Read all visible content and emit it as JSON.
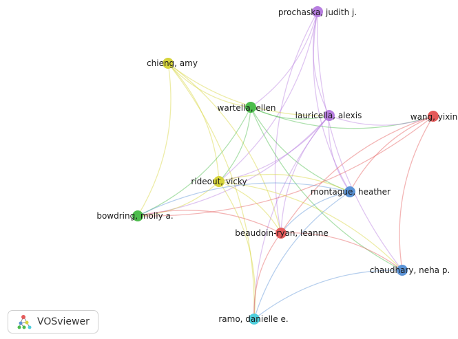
{
  "network": {
    "nodes": [
      {
        "id": "prochaska",
        "label": "prochaska, judith j.",
        "cluster": "purple"
      },
      {
        "id": "chieng",
        "label": "chieng, amy",
        "cluster": "yellow"
      },
      {
        "id": "wartella",
        "label": "wartella, ellen",
        "cluster": "green"
      },
      {
        "id": "lauricella",
        "label": "lauricella, alexis",
        "cluster": "purple"
      },
      {
        "id": "wang",
        "label": "wang, yixin",
        "cluster": "red"
      },
      {
        "id": "rideout",
        "label": "rideout, vicky",
        "cluster": "yellow"
      },
      {
        "id": "montague",
        "label": "montague, heather",
        "cluster": "blue"
      },
      {
        "id": "bowdring",
        "label": "bowdring, molly a.",
        "cluster": "green"
      },
      {
        "id": "beaudoin",
        "label": "beaudoin-ryan, leanne",
        "cluster": "red"
      },
      {
        "id": "chaudhary",
        "label": "chaudhary, neha p.",
        "cluster": "blue"
      },
      {
        "id": "ramo",
        "label": "ramo, danielle e.",
        "cluster": "cyan"
      }
    ],
    "edges": [
      [
        "prochaska",
        "wartella"
      ],
      [
        "prochaska",
        "lauricella"
      ],
      [
        "prochaska",
        "montague"
      ],
      [
        "prochaska",
        "chaudhary"
      ],
      [
        "prochaska",
        "beaudoin"
      ],
      [
        "prochaska",
        "rideout"
      ],
      [
        "chieng",
        "wartella"
      ],
      [
        "chieng",
        "lauricella"
      ],
      [
        "chieng",
        "rideout"
      ],
      [
        "chieng",
        "bowdring"
      ],
      [
        "chieng",
        "beaudoin"
      ],
      [
        "chieng",
        "ramo"
      ],
      [
        "wartella",
        "lauricella"
      ],
      [
        "wartella",
        "rideout"
      ],
      [
        "wartella",
        "bowdring"
      ],
      [
        "wartella",
        "montague"
      ],
      [
        "wartella",
        "chaudhary"
      ],
      [
        "wartella",
        "wang"
      ],
      [
        "lauricella",
        "wang"
      ],
      [
        "lauricella",
        "rideout"
      ],
      [
        "lauricella",
        "montague"
      ],
      [
        "lauricella",
        "beaudoin"
      ],
      [
        "lauricella",
        "ramo"
      ],
      [
        "lauricella",
        "bowdring"
      ],
      [
        "wang",
        "montague"
      ],
      [
        "wang",
        "beaudoin"
      ],
      [
        "wang",
        "chaudhary"
      ],
      [
        "wang",
        "bowdring"
      ],
      [
        "rideout",
        "bowdring"
      ],
      [
        "rideout",
        "beaudoin"
      ],
      [
        "rideout",
        "ramo"
      ],
      [
        "rideout",
        "montague"
      ],
      [
        "rideout",
        "chaudhary"
      ],
      [
        "montague",
        "beaudoin"
      ],
      [
        "montague",
        "ramo"
      ],
      [
        "montague",
        "bowdring"
      ],
      [
        "beaudoin",
        "chaudhary"
      ],
      [
        "beaudoin",
        "ramo"
      ],
      [
        "beaudoin",
        "bowdring"
      ],
      [
        "chaudhary",
        "ramo"
      ]
    ]
  },
  "colors": {
    "purple": "#b77ee0",
    "yellow": "#d6d43c",
    "green": "#4cbc4c",
    "red": "#e45a5a",
    "blue": "#5b93d6",
    "cyan": "#4fcfdc"
  },
  "branding": {
    "label": "VOSviewer",
    "icon": "vosviewer-logo-icon"
  }
}
